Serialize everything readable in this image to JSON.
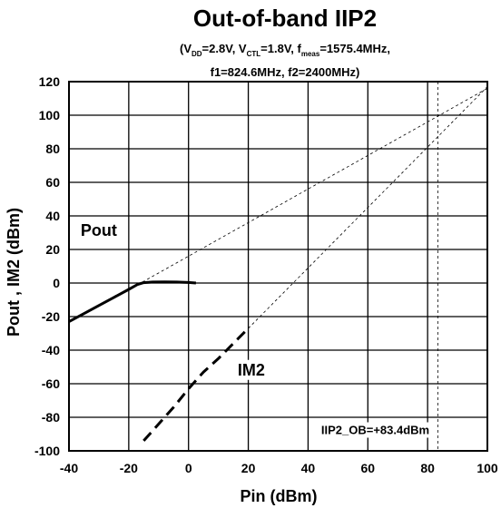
{
  "chart_data": {
    "type": "line",
    "title": "Out-of-band IIP2",
    "subtitle": {
      "line1": [
        {
          "t": "(V"
        },
        {
          "t": "DD",
          "sub": true
        },
        {
          "t": "=2.8V, V"
        },
        {
          "t": "CTL",
          "sub": true
        },
        {
          "t": "=1.8V, f"
        },
        {
          "t": "meas",
          "sub": true
        },
        {
          "t": "=1575.4MHz,"
        }
      ],
      "line2": "f1=824.6MHz, f2=2400MHz)"
    },
    "xlabel": "Pin (dBm)",
    "ylabel": "Pout , IM2 (dBm)",
    "xlim": [
      -40,
      100
    ],
    "ylim": [
      -100,
      120
    ],
    "xticks": [
      -40,
      -20,
      0,
      20,
      40,
      60,
      80,
      100
    ],
    "yticks": [
      -100,
      -80,
      -60,
      -40,
      -20,
      0,
      20,
      40,
      60,
      80,
      100,
      120
    ],
    "grid": true,
    "series": [
      {
        "name": "Pout",
        "style": "solid",
        "x": [
          -40,
          -35,
          -30,
          -25,
          -20,
          -17,
          -15,
          -12,
          -8,
          -4,
          0,
          2.5
        ],
        "y": [
          -23,
          -18.2,
          -13.4,
          -8.6,
          -3.8,
          -0.8,
          0.2,
          0.6,
          0.7,
          0.6,
          0.3,
          0
        ]
      },
      {
        "name": "IM2",
        "style": "dashed",
        "x": [
          -15,
          -10,
          -5,
          0,
          5,
          10,
          15,
          20
        ],
        "y": [
          -94,
          -84,
          -74,
          -63,
          -53,
          -45,
          -36,
          -27
        ]
      }
    ],
    "extrapolations": [
      {
        "x": [
          -17,
          100
        ],
        "y": [
          -1,
          116
        ]
      },
      {
        "x": [
          20,
          100
        ],
        "y": [
          -27,
          117
        ]
      }
    ],
    "vline": {
      "x": 83.4
    },
    "annotations": [
      {
        "text": "Pout",
        "x": -30,
        "y": 28
      },
      {
        "text": "IM2",
        "x": 21,
        "y": -55
      },
      {
        "text": "IIP2_OB=+83.4dBm",
        "x": 62.5,
        "y": -90
      }
    ]
  }
}
